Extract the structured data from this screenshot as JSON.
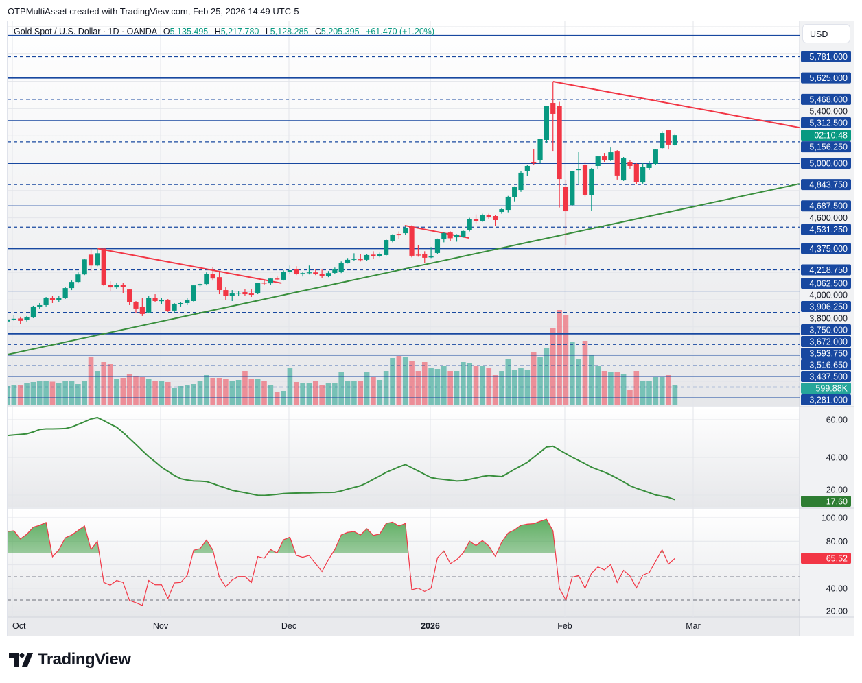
{
  "header": {
    "attribution": "OTPMultiAsset created with TradingView.com, Feb 25, 2026 14:49 UTC-5",
    "symbol": "Gold Spot / U.S. Dollar · 1D · OANDA",
    "o_label": "O",
    "o": "5,135.495",
    "h_label": "H",
    "h": "5,217.780",
    "l_label": "L",
    "l": "5,128.285",
    "c_label": "C",
    "c": "5,205.395",
    "change": "+61.470 (+1.20%)"
  },
  "price_axis": {
    "currency": "USD",
    "grid_labels": [
      {
        "price": 5400,
        "label": "5,400.000"
      },
      {
        "price": 4600,
        "label": "4,600.000"
      },
      {
        "price": 4000,
        "label": "4,000.000"
      },
      {
        "price": 3800,
        "label": "3,800.000"
      }
    ],
    "countdown": "02:10:48",
    "volume_label": "599.88K"
  },
  "levels": [
    {
      "price": 5937.5,
      "style": "solid"
    },
    {
      "price": 5781,
      "style": "dashed",
      "label": "5,781.000"
    },
    {
      "price": 5625,
      "style": "solid",
      "label": "5,625.000",
      "thick": true
    },
    {
      "price": 5468,
      "style": "dashed",
      "label": "5,468.000"
    },
    {
      "price": 5312.5,
      "style": "solid",
      "label": "5,312.500"
    },
    {
      "price": 5156.25,
      "style": "dashed",
      "label": "5,156.250"
    },
    {
      "price": 5000,
      "style": "solid",
      "label": "5,000.000",
      "thick": true
    },
    {
      "price": 4843.75,
      "style": "dashed",
      "label": "4,843.750"
    },
    {
      "price": 4687.5,
      "style": "solid",
      "label": "4,687.500"
    },
    {
      "price": 4531.25,
      "style": "dashed",
      "label": "4,531.250"
    },
    {
      "price": 4375,
      "style": "solid",
      "label": "4,375.000",
      "thick": true
    },
    {
      "price": 4218.75,
      "style": "dashed",
      "label": "4,218.750"
    },
    {
      "price": 4062.5,
      "style": "solid",
      "label": "4,062.500"
    },
    {
      "price": 3906.25,
      "style": "dashed",
      "label": "3,906.250"
    },
    {
      "price": 3750,
      "style": "solid",
      "label": "3,750.000",
      "thick": true
    },
    {
      "price": 3672,
      "style": "dashed",
      "label": "3,672.000"
    },
    {
      "price": 3593.75,
      "style": "solid",
      "label": "3,593.750"
    },
    {
      "price": 3516.65,
      "style": "dashed",
      "label": "3,516.650"
    },
    {
      "price": 3437.5,
      "style": "solid",
      "label": "3,437.500"
    },
    {
      "price": 3359.375,
      "style": "dashed"
    },
    {
      "price": 3281,
      "style": "solid",
      "label": "3,281.000"
    }
  ],
  "time_axis": [
    "Oct",
    "Nov",
    "Dec",
    "2026",
    "Feb",
    "Mar"
  ],
  "colors": {
    "up": "#089981",
    "down": "#f23645",
    "level": "#1848a0",
    "trend_down": "#f23645",
    "trend_up": "#388e3c",
    "adx": "#388e3c",
    "rsi": "#f23645"
  },
  "chart_data": [
    {
      "type": "candlestick",
      "ohlc_fields": [
        "open",
        "high",
        "low",
        "close"
      ],
      "ylim": [
        3226,
        6045
      ],
      "grid": true,
      "candles": [
        [
          3840,
          3870,
          3830,
          3855
        ],
        [
          3855,
          3885,
          3845,
          3860
        ],
        [
          3862,
          3875,
          3820,
          3845
        ],
        [
          3850,
          3880,
          3840,
          3870
        ],
        [
          3870,
          3955,
          3865,
          3945
        ],
        [
          3945,
          3975,
          3935,
          3960
        ],
        [
          3960,
          4020,
          3950,
          4010
        ],
        [
          4010,
          4030,
          3975,
          3995
        ],
        [
          3995,
          4030,
          3985,
          4010
        ],
        [
          4010,
          4095,
          4005,
          4085
        ],
        [
          4085,
          4140,
          4070,
          4130
        ],
        [
          4130,
          4200,
          4120,
          4185
        ],
        [
          4185,
          4300,
          4180,
          4295
        ],
        [
          4330,
          4375,
          4210,
          4250
        ],
        [
          4250,
          4375,
          4245,
          4340
        ],
        [
          4375,
          4380,
          4100,
          4110
        ],
        [
          4110,
          4135,
          4060,
          4090
        ],
        [
          4090,
          4125,
          4080,
          4110
        ],
        [
          4110,
          4125,
          4050,
          4095
        ],
        [
          4075,
          4080,
          3960,
          3980
        ],
        [
          3985,
          3990,
          3900,
          3935
        ],
        [
          3945,
          4010,
          3880,
          3895
        ],
        [
          3906,
          4025,
          3900,
          4015
        ],
        [
          4015,
          4040,
          3980,
          3990
        ],
        [
          3990,
          4010,
          3970,
          3995
        ],
        [
          4000,
          4005,
          3910,
          3915
        ],
        [
          3920,
          3975,
          3905,
          3970
        ],
        [
          3965,
          3980,
          3950,
          3975
        ],
        [
          3975,
          4015,
          3960,
          4000
        ],
        [
          3990,
          4110,
          3985,
          4105
        ],
        [
          4105,
          4120,
          4095,
          4115
        ],
        [
          4115,
          4200,
          4105,
          4186
        ],
        [
          4186,
          4240,
          4140,
          4155
        ],
        [
          4165,
          4210,
          4040,
          4070
        ],
        [
          4070,
          4090,
          4000,
          4030
        ],
        [
          4030,
          4070,
          3990,
          4045
        ],
        [
          4045,
          4060,
          4025,
          4050
        ],
        [
          4055,
          4080,
          4030,
          4040
        ],
        [
          4045,
          4075,
          4020,
          4035
        ],
        [
          4050,
          4125,
          4040,
          4125
        ],
        [
          4125,
          4150,
          4110,
          4118
        ],
        [
          4120,
          4160,
          4110,
          4155
        ],
        [
          4155,
          4170,
          4140,
          4148
        ],
        [
          4146,
          4215,
          4140,
          4205
        ],
        [
          4205,
          4250,
          4190,
          4216
        ],
        [
          4221,
          4245,
          4180,
          4191
        ],
        [
          4190,
          4205,
          4170,
          4195
        ],
        [
          4195,
          4250,
          4185,
          4200
        ],
        [
          4200,
          4225,
          4180,
          4186
        ],
        [
          4191,
          4220,
          4160,
          4175
        ],
        [
          4175,
          4210,
          4165,
          4195
        ],
        [
          4196,
          4235,
          4190,
          4221
        ],
        [
          4201,
          4280,
          4195,
          4271
        ],
        [
          4271,
          4305,
          4265,
          4292
        ],
        [
          4292,
          4340,
          4285,
          4298
        ],
        [
          4296,
          4335,
          4280,
          4290
        ],
        [
          4292,
          4335,
          4285,
          4327
        ],
        [
          4330,
          4355,
          4300,
          4318
        ],
        [
          4320,
          4345,
          4310,
          4335
        ],
        [
          4327,
          4445,
          4320,
          4437
        ],
        [
          4432,
          4480,
          4420,
          4477
        ],
        [
          4482,
          4500,
          4445,
          4472
        ],
        [
          4487,
          4540,
          4475,
          4523
        ],
        [
          4537,
          4545,
          4310,
          4322
        ],
        [
          4330,
          4400,
          4315,
          4325
        ],
        [
          4332,
          4355,
          4270,
          4307
        ],
        [
          4310,
          4385,
          4305,
          4318
        ],
        [
          4342,
          4448,
          4335,
          4442
        ],
        [
          4442,
          4495,
          4420,
          4487
        ],
        [
          4492,
          4500,
          4430,
          4450
        ],
        [
          4457,
          4480,
          4425,
          4477
        ],
        [
          4462,
          4510,
          4455,
          4503
        ],
        [
          4508,
          4600,
          4500,
          4588
        ],
        [
          4588,
          4625,
          4560,
          4575
        ],
        [
          4578,
          4630,
          4570,
          4618
        ],
        [
          4618,
          4630,
          4590,
          4605
        ],
        [
          4613,
          4620,
          4540,
          4583
        ],
        [
          4643,
          4670,
          4630,
          4663
        ],
        [
          4658,
          4760,
          4640,
          4754
        ],
        [
          4749,
          4830,
          4720,
          4824
        ],
        [
          4804,
          4940,
          4790,
          4930
        ],
        [
          4940,
          4985,
          4905,
          4980
        ],
        [
          5010,
          5105,
          4985,
          5002
        ],
        [
          5025,
          5180,
          5005,
          5176
        ],
        [
          5171,
          5420,
          5150,
          5417
        ],
        [
          5442,
          5598,
          5090,
          5362
        ],
        [
          5417,
          5450,
          4675,
          4884
        ],
        [
          4829,
          4880,
          4402,
          4648
        ],
        [
          4693,
          4945,
          4685,
          4940
        ],
        [
          4950,
          5085,
          4845,
          4955
        ],
        [
          4990,
          5010,
          4755,
          4769
        ],
        [
          4764,
          4965,
          4650,
          4960
        ],
        [
          4980,
          5055,
          4960,
          5050
        ],
        [
          5050,
          5075,
          5010,
          5020
        ],
        [
          5025,
          5115,
          5015,
          5080
        ],
        [
          5090,
          5095,
          4880,
          4910
        ],
        [
          4874,
          5045,
          4870,
          5035
        ],
        [
          5010,
          5020,
          4960,
          4980
        ],
        [
          4995,
          5000,
          4845,
          4864
        ],
        [
          4859,
          5000,
          4850,
          4970
        ],
        [
          4965,
          5015,
          4950,
          4995
        ],
        [
          4995,
          5105,
          4985,
          5100
        ],
        [
          5110,
          5235,
          5105,
          5221
        ],
        [
          5241,
          5245,
          5100,
          5136
        ],
        [
          5135.495,
          5217.78,
          5128.285,
          5205.395
        ]
      ],
      "trendlines": [
        {
          "color": "trend_down",
          "from": [
            85,
            5598
          ],
          "to": [
            123.4,
            5261
          ]
        },
        {
          "color": "trend_up",
          "from": [
            0,
            3598
          ],
          "to": [
            123.4,
            4849
          ]
        },
        {
          "color": "trend_down",
          "from": [
            14,
            4375
          ],
          "to": [
            42.7,
            4121
          ]
        },
        {
          "color": "trend_down",
          "from": [
            61.9,
            4543
          ],
          "to": [
            71.9,
            4452
          ]
        }
      ]
    },
    {
      "type": "bar",
      "series": "volume",
      "unit": "K",
      "values": [
        560,
        580,
        600,
        650,
        680,
        700,
        720,
        690,
        660,
        700,
        720,
        620,
        720,
        1400,
        1000,
        1260,
        1200,
        760,
        800,
        900,
        860,
        820,
        780,
        720,
        700,
        680,
        500,
        560,
        580,
        620,
        700,
        880,
        800,
        800,
        760,
        700,
        740,
        1000,
        760,
        780,
        720,
        600,
        380,
        420,
        1100,
        680,
        660,
        640,
        700,
        600,
        640,
        640,
        980,
        700,
        700,
        700,
        980,
        820,
        740,
        1000,
        1380,
        1440,
        1420,
        1280,
        1000,
        1260,
        1100,
        1060,
        1160,
        1000,
        1000,
        1260,
        1220,
        1160,
        1160,
        1100,
        880,
        1000,
        1360,
        1020,
        1100,
        1040,
        1540,
        1400,
        1680,
        2260,
        2780,
        2640,
        1860,
        1360,
        1880,
        1460,
        1160,
        1000,
        960,
        960,
        900,
        440,
        1000,
        720,
        720,
        820,
        820,
        880,
        599.88
      ]
    },
    {
      "type": "line",
      "ylim": [
        10,
        66
      ],
      "tick_labels": [
        "60.00",
        "40.00",
        "20.00"
      ],
      "last_value_label": "17.60",
      "values": [
        51.6,
        51.9,
        52.2,
        52.5,
        53.5,
        54.8,
        55.1,
        55.1,
        55.2,
        55.3,
        56.1,
        57.5,
        58.9,
        60.4,
        61.1,
        59.5,
        57.7,
        56,
        53.2,
        50.1,
        46.9,
        43.6,
        40.4,
        37.7,
        34.8,
        32.6,
        30.4,
        28.7,
        28,
        27.5,
        27.4,
        27.2,
        26.1,
        24.9,
        23.8,
        22.6,
        21.9,
        21.3,
        20.6,
        19.9,
        19.8,
        20.1,
        20.4,
        20.8,
        21,
        21.1,
        21.2,
        21.2,
        21.3,
        21.4,
        21.4,
        21.5,
        22.2,
        23.2,
        24.1,
        25,
        26.5,
        28.4,
        30.2,
        32.1,
        33.5,
        35,
        36.2,
        34.5,
        32.8,
        31,
        29.3,
        28.7,
        28.3,
        27.9,
        27.5,
        27.7,
        28.4,
        29.1,
        29.9,
        30.4,
        30.1,
        29.8,
        31.7,
        33.7,
        35.5,
        37.4,
        40.1,
        42.8,
        45.5,
        45.9,
        43.9,
        42,
        40.1,
        38.4,
        36.7,
        34.8,
        33.5,
        32.2,
        30.7,
        28.9,
        27,
        25,
        23.6,
        22.5,
        21.3,
        20.1,
        19.4,
        18.8,
        17.6
      ]
    },
    {
      "type": "line",
      "ylim": [
        5,
        107
      ],
      "bands": [
        70,
        50,
        30
      ],
      "tick_labels": [
        "100.00",
        "80.00",
        "40.00",
        "20.00"
      ],
      "last_value_label": "65.52",
      "values": [
        88.3,
        88.9,
        82,
        86,
        92,
        93.6,
        96,
        66.8,
        72.8,
        83,
        85.4,
        89.2,
        93,
        73,
        80,
        45,
        42.7,
        46.6,
        45,
        29.7,
        27.7,
        25.4,
        46.6,
        43,
        43,
        31.4,
        44.6,
        45,
        51,
        72.4,
        73.8,
        81,
        72.6,
        49.5,
        41.3,
        47,
        50,
        50,
        45,
        67,
        65.6,
        73,
        70,
        81.3,
        83.5,
        68,
        66.4,
        68,
        61,
        54.3,
        64.4,
        73,
        85.4,
        87.6,
        88.3,
        85.4,
        90.7,
        85,
        86.2,
        95.2,
        96.3,
        93,
        95.2,
        38.8,
        40.1,
        37.4,
        40.1,
        66,
        71.8,
        61,
        64.4,
        70,
        80,
        76.3,
        80.6,
        76,
        67.3,
        79.2,
        87,
        89.7,
        93.6,
        94.6,
        95,
        97,
        98.7,
        88.9,
        40,
        30,
        49.5,
        50.8,
        40,
        52.8,
        58.2,
        55.7,
        60.2,
        45,
        55.3,
        50.4,
        40.4,
        51.2,
        53.4,
        63.1,
        72.8,
        60.6,
        65.52
      ]
    }
  ],
  "footer": {
    "logo_text": "TradingView"
  }
}
